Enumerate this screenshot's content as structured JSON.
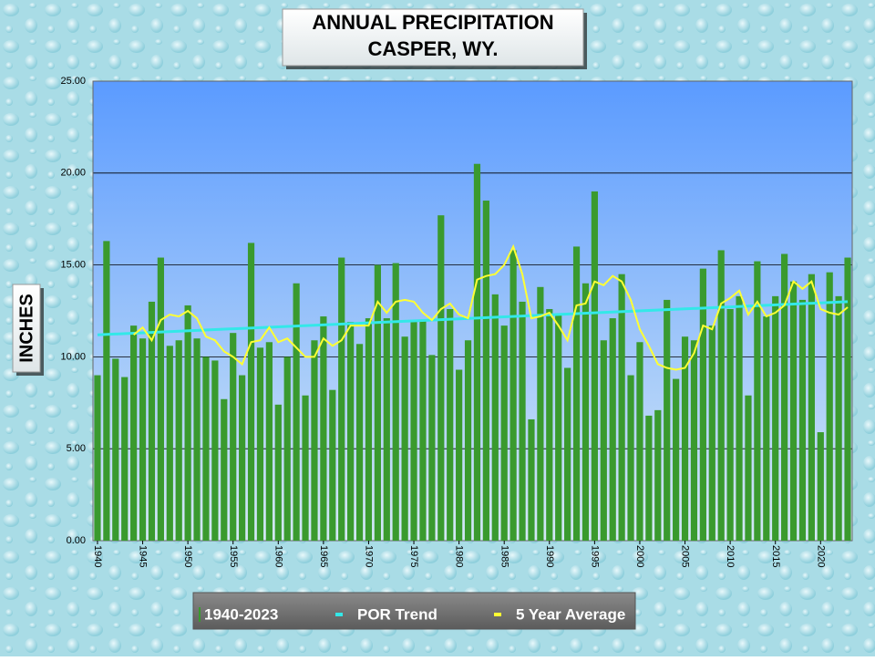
{
  "chart_data": {
    "type": "bar",
    "title": "ANNUAL PRECIPITATION",
    "subtitle": "CASPER, WY.",
    "y_label": "INCHES",
    "x": [
      1940,
      1941,
      1942,
      1943,
      1944,
      1945,
      1946,
      1947,
      1948,
      1949,
      1950,
      1951,
      1952,
      1953,
      1954,
      1955,
      1956,
      1957,
      1958,
      1959,
      1960,
      1961,
      1962,
      1963,
      1964,
      1965,
      1966,
      1967,
      1968,
      1969,
      1970,
      1971,
      1972,
      1973,
      1974,
      1975,
      1976,
      1977,
      1978,
      1979,
      1980,
      1981,
      1982,
      1983,
      1984,
      1985,
      1986,
      1987,
      1988,
      1989,
      1990,
      1991,
      1992,
      1993,
      1994,
      1995,
      1996,
      1997,
      1998,
      1999,
      2000,
      2001,
      2002,
      2003,
      2004,
      2005,
      2006,
      2007,
      2008,
      2009,
      2010,
      2011,
      2012,
      2013,
      2014,
      2015,
      2016,
      2017,
      2018,
      2019,
      2020,
      2021,
      2022,
      2023
    ],
    "xlim": [
      1940,
      2024
    ],
    "xticks": [
      1940,
      1945,
      1950,
      1955,
      1960,
      1965,
      1970,
      1975,
      1980,
      1985,
      1990,
      1995,
      2000,
      2005,
      2010,
      2015,
      2020
    ],
    "ylim": [
      0,
      25
    ],
    "yticks": [
      {
        "value": 0,
        "label": "0.00"
      },
      {
        "value": 5,
        "label": "5.00"
      },
      {
        "value": 10,
        "label": "10.00"
      },
      {
        "value": 15,
        "label": "15.00"
      },
      {
        "value": 20,
        "label": "20.00"
      },
      {
        "value": 25,
        "label": "25.00"
      }
    ],
    "grid": true,
    "series": [
      {
        "name": "1940-2023",
        "type": "bar",
        "color": "#3a9a2e",
        "values": [
          9.0,
          16.3,
          9.9,
          8.9,
          11.7,
          11.0,
          13.0,
          15.4,
          10.6,
          10.9,
          12.8,
          11.0,
          10.0,
          9.8,
          7.7,
          11.3,
          9.0,
          16.2,
          10.5,
          10.8,
          7.4,
          10.0,
          14.0,
          7.9,
          10.9,
          12.2,
          8.2,
          15.4,
          11.9,
          10.7,
          12.1,
          15.0,
          12.1,
          15.1,
          11.1,
          11.9,
          12.0,
          10.1,
          17.7,
          12.6,
          9.3,
          10.9,
          20.5,
          18.5,
          13.4,
          11.7,
          15.8,
          13.0,
          6.6,
          13.8,
          12.6,
          12.3,
          9.4,
          16.0,
          14.0,
          19.0,
          10.9,
          12.1,
          14.5,
          9.0,
          10.8,
          6.8,
          7.1,
          13.1,
          8.8,
          11.1,
          10.9,
          14.8,
          11.7,
          15.8,
          12.6,
          13.3,
          7.9,
          15.2,
          12.2,
          13.3,
          15.6,
          14.1,
          13.1,
          14.5,
          5.9,
          14.6,
          13.3,
          15.4
        ]
      },
      {
        "name": "POR Trend",
        "type": "line",
        "color": "#33e8e8",
        "x": [
          1940,
          2023
        ],
        "values": [
          11.2,
          13.0
        ]
      },
      {
        "name": "5 Year Average",
        "type": "line",
        "color": "#ffff33",
        "values": [
          null,
          null,
          null,
          null,
          11.2,
          11.6,
          10.9,
          12.0,
          12.3,
          12.2,
          12.5,
          12.1,
          11.1,
          10.9,
          10.3,
          10.0,
          9.6,
          10.8,
          10.9,
          11.6,
          10.8,
          11.0,
          10.5,
          10.0,
          10.0,
          11.0,
          10.6,
          10.9,
          11.7,
          11.7,
          11.7,
          13.0,
          12.4,
          13.0,
          13.1,
          13.0,
          12.4,
          12.0,
          12.6,
          12.9,
          12.3,
          12.1,
          14.2,
          14.4,
          14.5,
          15.0,
          16.0,
          14.5,
          12.1,
          12.2,
          12.4,
          11.7,
          10.9,
          12.8,
          12.9,
          14.1,
          13.9,
          14.4,
          14.1,
          13.1,
          11.5,
          10.6,
          9.6,
          9.4,
          9.3,
          9.4,
          10.2,
          11.7,
          11.5,
          12.9,
          13.2,
          13.6,
          12.3,
          13.0,
          12.2,
          12.4,
          12.8,
          14.1,
          13.7,
          14.1,
          12.6,
          12.4,
          12.3,
          12.7
        ]
      }
    ]
  }
}
